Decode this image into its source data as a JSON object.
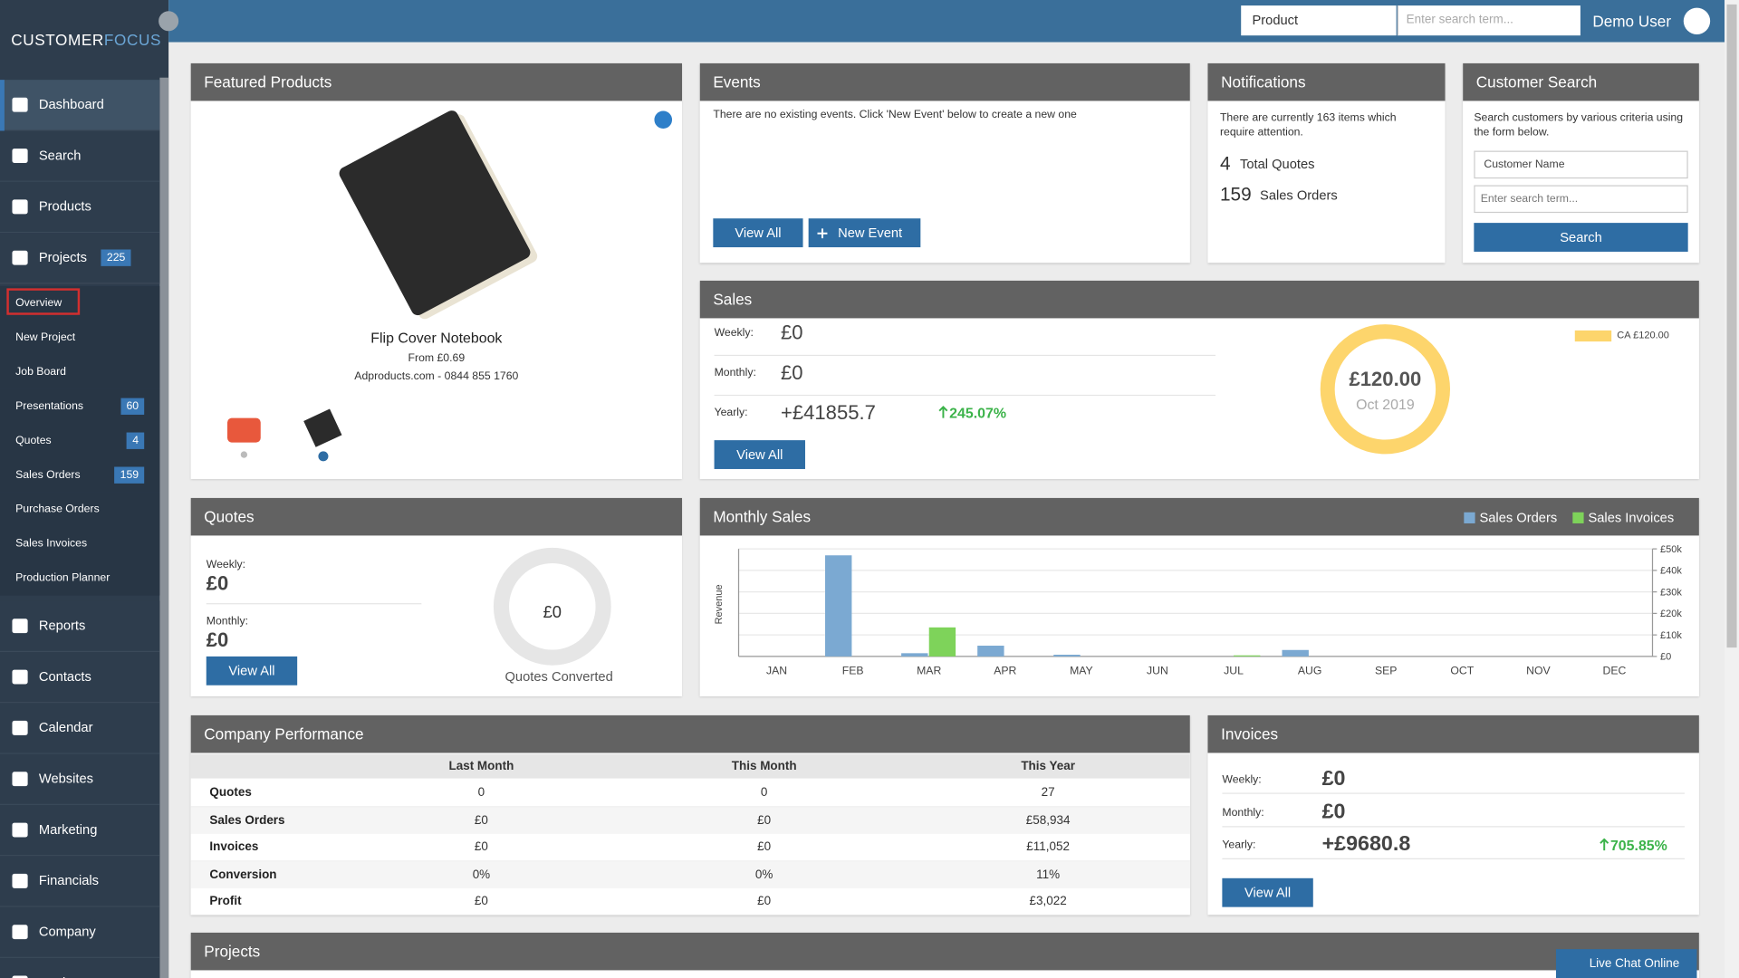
{
  "brand": {
    "part1": "CUSTOMER",
    "part2": "FOCUS"
  },
  "topbar": {
    "search_type": "Product",
    "search_placeholder": "Enter search term...",
    "user": "Demo User"
  },
  "nav_top": [
    {
      "label": "Dashboard"
    },
    {
      "label": "Search"
    },
    {
      "label": "Products"
    },
    {
      "label": "Projects",
      "badge": 225
    }
  ],
  "subnav": [
    {
      "label": "Overview"
    },
    {
      "label": "New Project"
    },
    {
      "label": "Job Board"
    },
    {
      "label": "Presentations",
      "badge": 60
    },
    {
      "label": "Quotes",
      "badge": 4
    },
    {
      "label": "Sales Orders",
      "badge": 159
    },
    {
      "label": "Purchase Orders"
    },
    {
      "label": "Sales Invoices"
    },
    {
      "label": "Production Planner"
    }
  ],
  "nav_bottom": [
    {
      "label": "Reports"
    },
    {
      "label": "Contacts"
    },
    {
      "label": "Calendar"
    },
    {
      "label": "Websites"
    },
    {
      "label": "Marketing"
    },
    {
      "label": "Financials"
    },
    {
      "label": "Company"
    },
    {
      "label": "Settings"
    }
  ],
  "featured": {
    "title": "Featured Products",
    "product": "Flip Cover Notebook",
    "price": "From £0.69",
    "supplier": "Adproducts.com - 0844 855 1760"
  },
  "events": {
    "title": "Events",
    "message": "There are no existing events. Click 'New Event' below to create a new one",
    "view_all": "View All",
    "new_event": "New Event"
  },
  "notifications": {
    "title": "Notifications",
    "message": "There are currently 163 items which require attention.",
    "items": [
      {
        "count": 4,
        "label": "Total Quotes"
      },
      {
        "count": 159,
        "label": "Sales Orders"
      }
    ]
  },
  "customer_search": {
    "title": "Customer Search",
    "message": "Search customers by various criteria using the form below.",
    "select": "Customer Name",
    "placeholder": "Enter search term...",
    "button": "Search"
  },
  "sales": {
    "title": "Sales",
    "rows": [
      {
        "label": "Weekly:",
        "value": "£0"
      },
      {
        "label": "Monthly:",
        "value": "£0"
      },
      {
        "label": "Yearly:",
        "value": "+£41855.7",
        "change": "245.07%"
      }
    ],
    "button": "View All",
    "donut_value": "£120.00",
    "donut_period": "Oct 2019",
    "legend": "CA £120.00"
  },
  "quotes": {
    "title": "Quotes",
    "rows": [
      {
        "label": "Weekly:",
        "value": "£0"
      },
      {
        "label": "Monthly:",
        "value": "£0"
      }
    ],
    "button": "View All",
    "donut_value": "£0",
    "donut_caption": "Quotes Converted"
  },
  "monthly_sales": {
    "type": "bar",
    "title": "Monthly Sales",
    "y_label": "Revenue",
    "categories": [
      "JAN",
      "FEB",
      "MAR",
      "APR",
      "MAY",
      "JUN",
      "JUL",
      "AUG",
      "SEP",
      "OCT",
      "NOV",
      "DEC"
    ],
    "series": [
      {
        "name": "Sales Orders",
        "color": "#7ba9d2",
        "values": [
          0,
          47000,
          1500,
          5000,
          800,
          0,
          0,
          3000,
          0,
          0,
          0,
          0
        ]
      },
      {
        "name": "Sales Invoices",
        "color": "#7ed35a",
        "values": [
          0,
          0,
          13500,
          0,
          0,
          0,
          500,
          0,
          0,
          0,
          0,
          0
        ]
      }
    ],
    "ylim": [
      0,
      50000
    ],
    "yticks": [
      {
        "value": 0,
        "label": "£0"
      },
      {
        "value": 10000,
        "label": "£10k"
      },
      {
        "value": 20000,
        "label": "£20k"
      },
      {
        "value": 30000,
        "label": "£30k"
      },
      {
        "value": 40000,
        "label": "£40k"
      },
      {
        "value": 50000,
        "label": "£50k"
      }
    ],
    "grid": true
  },
  "company_performance": {
    "title": "Company Performance",
    "columns": [
      "Last Month",
      "This Month",
      "This Year"
    ],
    "rows": [
      [
        "Quotes",
        "0",
        "0",
        "27"
      ],
      [
        "Sales Orders",
        "£0",
        "£0",
        "£58,934"
      ],
      [
        "Invoices",
        "£0",
        "£0",
        "£11,052"
      ],
      [
        "Conversion",
        "0%",
        "0%",
        "11%"
      ],
      [
        "Profit",
        "£0",
        "£0",
        "£3,022"
      ]
    ]
  },
  "invoices": {
    "title": "Invoices",
    "rows": [
      {
        "label": "Weekly:",
        "value": "£0"
      },
      {
        "label": "Monthly:",
        "value": "£0"
      },
      {
        "label": "Yearly:",
        "value": "+£9680.8",
        "change": "705.85%"
      }
    ],
    "button": "View All"
  },
  "projects": {
    "title": "Projects"
  },
  "live_chat": "Live Chat Online"
}
